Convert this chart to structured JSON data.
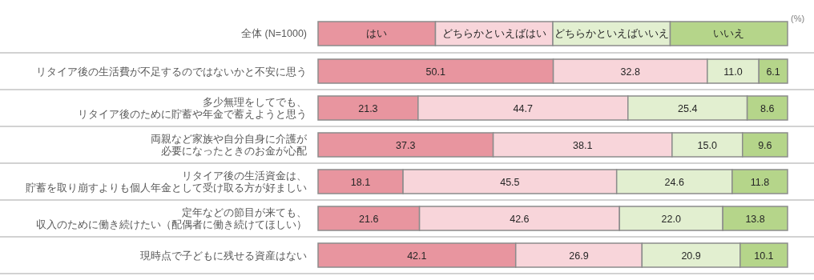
{
  "chart_data": {
    "type": "bar",
    "orientation": "horizontal",
    "stacked": true,
    "xlim": [
      0,
      100
    ],
    "tick_labels": "y",
    "categories": [
      "リタイア後の生活費が不足するのではないかと不安に思う",
      "多少無理をしてでも、リタイア後のために貯蓄や年金で蓄えようと思う",
      "両親など家族や自分自身に介護が必要になったときのお金が心配",
      "リタイア後の生活資金は、貯蓄を取り崩すよりも個人年金として受け取る方が好ましい",
      "定年などの節目が来ても、収入のために働き続けたい（配偶者に働き続けてほしい）",
      "現時点で子どもに残せる資産はない"
    ],
    "series": [
      {
        "name": "はい",
        "color": "#e8959f",
        "values": [
          50.1,
          21.3,
          37.3,
          18.1,
          21.6,
          42.1
        ],
        "value_labels": [
          "50.1",
          "21.3",
          "37.3",
          "18.1",
          "21.6",
          "42.1"
        ]
      },
      {
        "name": "どちらかといえばはい",
        "color": "#f8d5da",
        "values": [
          32.8,
          44.7,
          38.1,
          45.5,
          42.6,
          26.9
        ],
        "value_labels": [
          "32.8",
          "44.7",
          "38.1",
          "45.5",
          "42.6",
          "26.9"
        ]
      },
      {
        "name": "どちらかといえばいいえ",
        "color": "#e2efd0",
        "values": [
          11.0,
          25.4,
          15.0,
          24.6,
          22.0,
          20.9
        ],
        "value_labels": [
          "11.0",
          "25.4",
          "15.0",
          "24.6",
          "22.0",
          "20.9"
        ]
      },
      {
        "name": "いいえ",
        "color": "#b5d58a",
        "values": [
          6.1,
          8.6,
          9.6,
          11.8,
          13.8,
          10.1
        ],
        "value_labels": [
          "6.1",
          "8.6",
          "9.6",
          "11.8",
          "13.8",
          "10.1"
        ]
      }
    ],
    "data_labels": true,
    "legend": "top",
    "legend_title": "全体 (N=1000)",
    "annotations": [
      "(%)"
    ]
  }
}
